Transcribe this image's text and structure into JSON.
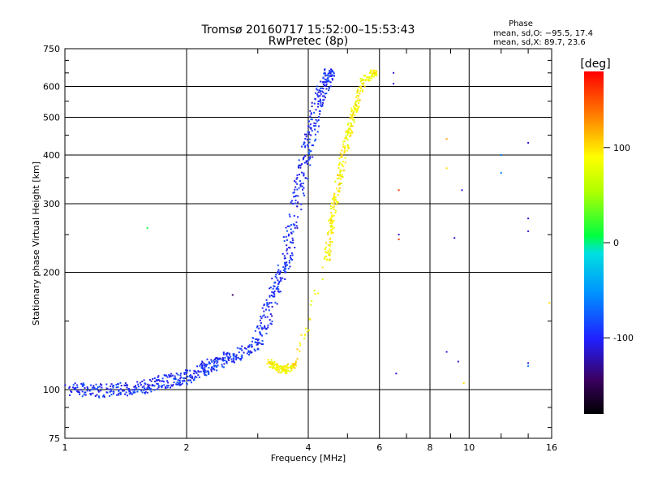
{
  "chart_data": {
    "type": "scatter",
    "title": "Tromsø 20160717 15:52:00–15:53:43",
    "subtitle": "RwPretec (8p)",
    "xlabel": "Frequency [MHz]",
    "ylabel": "Stationary phase Virtual Height [km]",
    "x_scale": "log2",
    "y_scale": "log",
    "xlim": [
      1,
      16
    ],
    "ylim": [
      75,
      750
    ],
    "x_ticks": [
      1,
      2,
      4,
      6,
      8,
      10,
      16
    ],
    "x_tick_labels": [
      "1",
      "2",
      "4",
      "6",
      "8",
      "10",
      "16"
    ],
    "y_ticks": [
      75,
      100,
      200,
      300,
      400,
      500,
      600,
      750
    ],
    "y_tick_labels": [
      "75",
      "100",
      "200",
      "300",
      "400",
      "500",
      "600",
      "750"
    ],
    "grid": true,
    "phase_box": {
      "title": "Phase",
      "line_o": "mean, sd,O: −95.5, 17.4",
      "line_x": "mean, sd,X:  89.7, 23.6"
    },
    "colorbar": {
      "label": "[deg]",
      "range": [
        -180,
        180
      ],
      "ticks": [
        100,
        0,
        -100
      ],
      "tick_labels": [
        "100",
        "0",
        "-100"
      ]
    },
    "series": [
      {
        "mode": "O",
        "color_deg": -95,
        "points": [
          [
            1.0,
            100
          ],
          [
            1.1,
            100
          ],
          [
            1.2,
            99
          ],
          [
            1.3,
            100
          ],
          [
            1.4,
            100
          ],
          [
            1.5,
            101
          ],
          [
            1.6,
            102
          ],
          [
            1.7,
            104
          ],
          [
            1.8,
            105
          ],
          [
            1.9,
            106
          ],
          [
            2.0,
            107
          ],
          [
            2.1,
            110
          ],
          [
            2.2,
            113
          ],
          [
            2.3,
            115
          ],
          [
            2.4,
            118
          ],
          [
            2.5,
            120
          ],
          [
            2.6,
            122
          ],
          [
            2.8,
            125
          ],
          [
            3.0,
            132
          ],
          [
            3.1,
            145
          ],
          [
            3.2,
            160
          ],
          [
            3.3,
            180
          ],
          [
            3.4,
            195
          ],
          [
            3.5,
            210
          ],
          [
            3.6,
            240
          ],
          [
            3.7,
            280
          ],
          [
            3.8,
            330
          ],
          [
            3.9,
            380
          ],
          [
            4.0,
            420
          ],
          [
            4.1,
            470
          ],
          [
            4.2,
            520
          ],
          [
            4.3,
            570
          ],
          [
            4.4,
            610
          ],
          [
            4.5,
            640
          ]
        ]
      },
      {
        "mode": "X",
        "color_deg": 90,
        "points": [
          [
            3.2,
            118
          ],
          [
            3.3,
            115
          ],
          [
            3.4,
            113
          ],
          [
            3.5,
            112
          ],
          [
            3.6,
            114
          ],
          [
            3.7,
            116
          ],
          [
            4.45,
            215
          ],
          [
            4.5,
            235
          ],
          [
            4.55,
            265
          ],
          [
            4.6,
            285
          ],
          [
            4.7,
            320
          ],
          [
            4.8,
            360
          ],
          [
            4.9,
            400
          ],
          [
            5.0,
            440
          ],
          [
            5.1,
            480
          ],
          [
            5.2,
            520
          ],
          [
            5.3,
            560
          ],
          [
            5.5,
            620
          ],
          [
            5.8,
            650
          ]
        ]
      }
    ],
    "isolated_points": [
      {
        "x": 1.6,
        "y": 260,
        "color_deg": 10
      },
      {
        "x": 2.6,
        "y": 175,
        "color_deg": -140
      },
      {
        "x": 6.5,
        "y": 650,
        "color_deg": -110
      },
      {
        "x": 6.5,
        "y": 610,
        "color_deg": -110
      },
      {
        "x": 6.7,
        "y": 325,
        "color_deg": 160
      },
      {
        "x": 6.7,
        "y": 250,
        "color_deg": -110
      },
      {
        "x": 6.7,
        "y": 243,
        "color_deg": 160
      },
      {
        "x": 6.6,
        "y": 110,
        "color_deg": -110
      },
      {
        "x": 8.8,
        "y": 440,
        "color_deg": 120
      },
      {
        "x": 8.8,
        "y": 370,
        "color_deg": 100
      },
      {
        "x": 9.6,
        "y": 325,
        "color_deg": -110
      },
      {
        "x": 9.2,
        "y": 245,
        "color_deg": -110
      },
      {
        "x": 8.8,
        "y": 125,
        "color_deg": -110
      },
      {
        "x": 9.4,
        "y": 118,
        "color_deg": -110
      },
      {
        "x": 9.7,
        "y": 104,
        "color_deg": 100
      },
      {
        "x": 12.0,
        "y": 400,
        "color_deg": -60
      },
      {
        "x": 12.0,
        "y": 360,
        "color_deg": -60
      },
      {
        "x": 14.0,
        "y": 430,
        "color_deg": -110
      },
      {
        "x": 14.0,
        "y": 275,
        "color_deg": -110
      },
      {
        "x": 14.0,
        "y": 255,
        "color_deg": -110
      },
      {
        "x": 14.0,
        "y": 117,
        "color_deg": -110
      },
      {
        "x": 14.0,
        "y": 115,
        "color_deg": -60
      },
      {
        "x": 15.8,
        "y": 167,
        "color_deg": 100
      }
    ]
  }
}
